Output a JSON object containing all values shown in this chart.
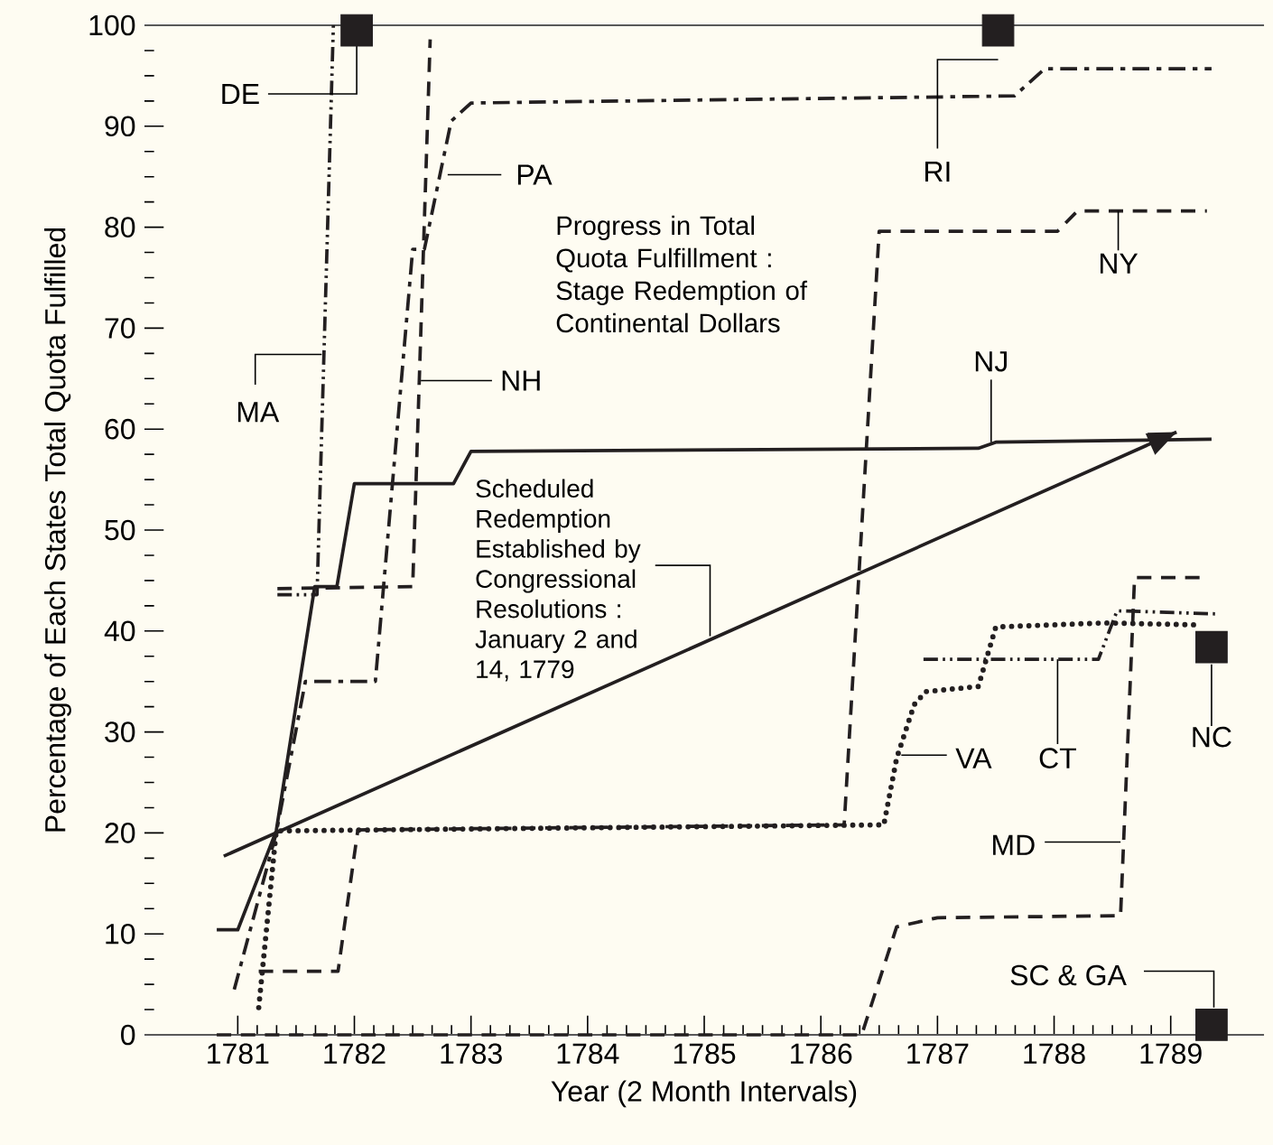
{
  "chart_data": {
    "type": "line",
    "title": "Progress in Total Quota Fulfillment : Stage Redemption of Continental Dollars",
    "xlabel": "Year (2 Month Intervals)",
    "ylabel": "Percentage of Each States Total Quota Fulfilled",
    "xlim": [
      1780.2,
      1789.8
    ],
    "ylim": [
      0,
      100
    ],
    "xticks": [
      1781,
      1782,
      1783,
      1784,
      1785,
      1786,
      1787,
      1788,
      1789
    ],
    "yticks": [
      0,
      10,
      20,
      30,
      40,
      50,
      60,
      70,
      80,
      90,
      100
    ],
    "grid": false,
    "series": [
      {
        "name": "DE",
        "type": "scatter",
        "marker": "square",
        "color": "#231f20",
        "x": [
          1782.02
        ],
        "values": [
          99.5
        ]
      },
      {
        "name": "MA",
        "line_style": "dashdotdot",
        "color": "#231f20",
        "x": [
          1781.34,
          1781.68,
          1781.82
        ],
        "values": [
          43.6,
          43.6,
          100
        ]
      },
      {
        "name": "NH",
        "line_style": "dashed",
        "color": "#231f20",
        "x": [
          1781.34,
          1782.5,
          1782.65
        ],
        "values": [
          44.2,
          44.4,
          98.6
        ]
      },
      {
        "name": "PA",
        "line_style": "dashdot",
        "color": "#231f20",
        "x": [
          1780.97,
          1781.33,
          1781.58,
          1782.18,
          1782.5,
          1782.6,
          1782.83,
          1783.0,
          1787.66,
          1787.92,
          1789.35
        ],
        "values": [
          4.5,
          20,
          35,
          35,
          77.8,
          77.8,
          90.5,
          92.3,
          93.0,
          95.7,
          95.7
        ]
      },
      {
        "name": "NJ",
        "line_style": "solid",
        "color": "#231f20",
        "x": [
          1780.82,
          1781.0,
          1781.33,
          1781.66,
          1781.85,
          1782.0,
          1782.85,
          1783.0,
          1787.35,
          1787.5,
          1789.35
        ],
        "values": [
          10.4,
          10.4,
          20.2,
          44.4,
          44.4,
          54.6,
          54.6,
          57.8,
          58.1,
          58.7,
          59.0
        ]
      },
      {
        "name": "Scheduled Redemption Established by Congressional Resolutions : January 2 and 14, 1779",
        "line_style": "solid",
        "color": "#231f20",
        "x": [
          1780.88,
          1789.05
        ],
        "values": [
          17.7,
          59.7
        ]
      },
      {
        "name": "RI",
        "type": "scatter",
        "marker": "square",
        "color": "#231f20",
        "x": [
          1787.52
        ],
        "values": [
          99.5
        ]
      },
      {
        "name": "NY",
        "line_style": "dashed",
        "color": "#231f20",
        "x": [
          1781.18,
          1781.86,
          1782.03,
          1786.2,
          1786.5,
          1788.03,
          1788.2,
          1789.31
        ],
        "values": [
          6.3,
          6.3,
          20.3,
          20.8,
          79.6,
          79.6,
          81.6,
          81.6
        ]
      },
      {
        "name": "VA",
        "line_style": "dotted",
        "color": "#231f20",
        "x": [
          1781.18,
          1781.33,
          1786.54,
          1786.65,
          1786.8,
          1786.9,
          1787.35,
          1787.5,
          1788.43,
          1789.26
        ],
        "values": [
          2.7,
          20.2,
          20.8,
          27.4,
          32.7,
          34.0,
          34.5,
          40.4,
          40.8,
          40.6
        ]
      },
      {
        "name": "CT",
        "line_style": "dashdotdot",
        "color": "#231f20",
        "x": [
          1786.88,
          1788.38,
          1788.54,
          1789.38
        ],
        "values": [
          37.2,
          37.2,
          42.0,
          41.7
        ]
      },
      {
        "name": "MD",
        "line_style": "dashed",
        "color": "#231f20",
        "x": [
          1780.82,
          1786.35,
          1786.65,
          1787.0,
          1788.57,
          1788.69,
          1789.31
        ],
        "values": [
          0,
          0,
          10.7,
          11.6,
          11.8,
          45.3,
          45.3
        ]
      },
      {
        "name": "NC",
        "type": "scatter",
        "marker": "square",
        "color": "#231f20",
        "x": [
          1789.35
        ],
        "values": [
          38.4
        ]
      },
      {
        "name": "SC & GA",
        "type": "scatter",
        "marker": "square",
        "color": "#231f20",
        "x": [
          1789.35
        ],
        "values": [
          1.0
        ]
      }
    ]
  }
}
